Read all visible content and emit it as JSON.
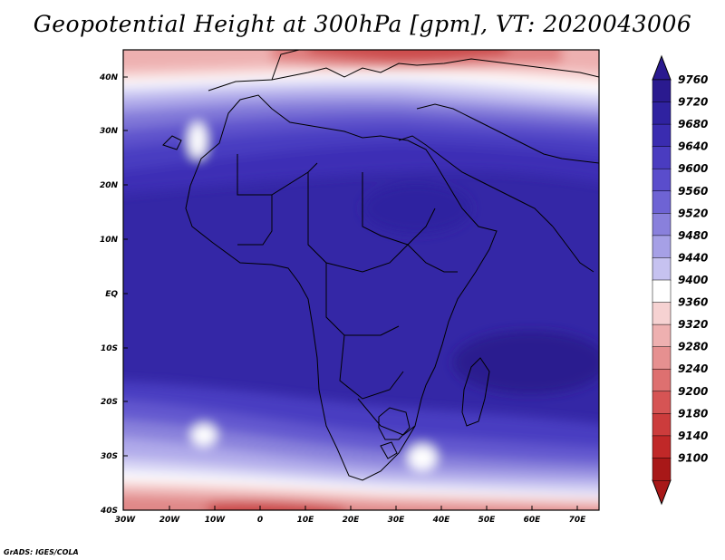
{
  "title": "Geopotential Height at 300hPa [gpm], VT: 2020043006",
  "footer": "GrADS: IGES/COLA",
  "lat_labels": [
    "40N",
    "30N",
    "20N",
    "10N",
    "EQ",
    "10S",
    "20S",
    "30S",
    "40S"
  ],
  "lon_labels": [
    "30W",
    "20W",
    "10W",
    "0",
    "10E",
    "20E",
    "30E",
    "40E",
    "50E",
    "60E",
    "70E"
  ],
  "colorbar": {
    "levels": [
      "9760",
      "9720",
      "9680",
      "9640",
      "9600",
      "9560",
      "9520",
      "9480",
      "9440",
      "9400",
      "9360",
      "9320",
      "9280",
      "9240",
      "9200",
      "9180",
      "9140",
      "9100"
    ],
    "colors": [
      "#2a1a8f",
      "#2f22a0",
      "#3a2cb0",
      "#4a3cc0",
      "#5a4dcc",
      "#6e63d4",
      "#8980dc",
      "#a6a0e6",
      "#c6c2f0",
      "#ffffff",
      "#f6d2d2",
      "#eeb0b0",
      "#e69090",
      "#de7070",
      "#d65454",
      "#cc3c3c",
      "#c02828",
      "#a81818"
    ]
  }
}
